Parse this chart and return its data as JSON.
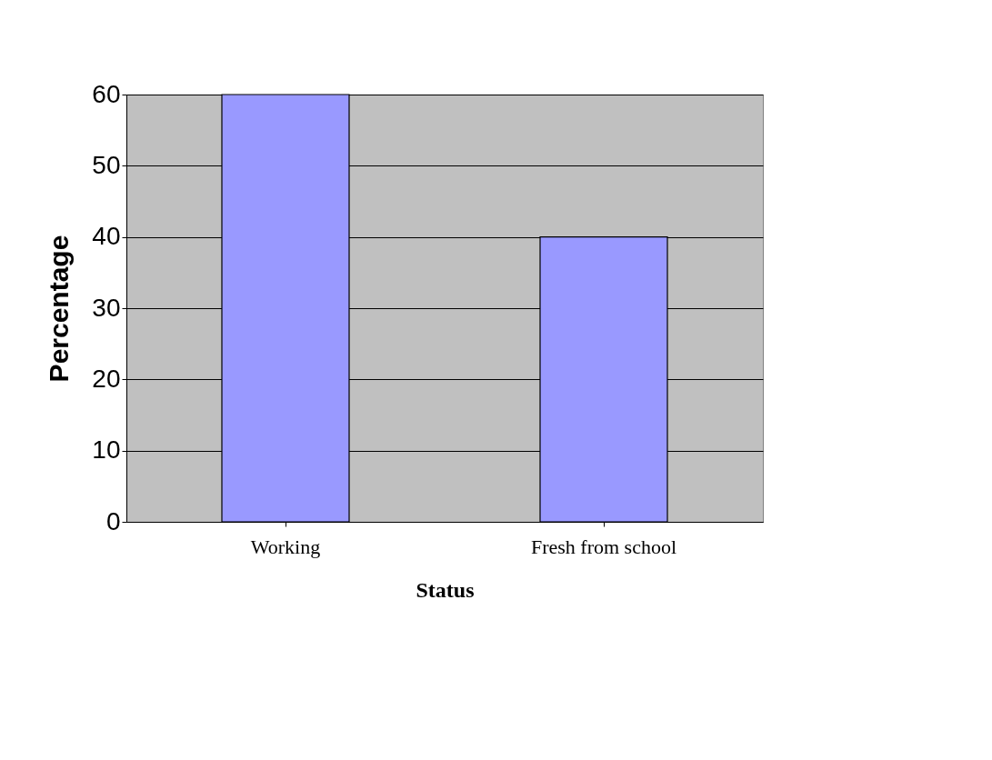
{
  "chart_data": {
    "type": "bar",
    "xlabel": "Status",
    "ylabel": "Percentage",
    "categories": [
      "Working",
      "Fresh from school"
    ],
    "values": [
      60,
      40
    ],
    "color": "#9999ff",
    "ylim": [
      0,
      60
    ],
    "yticks": [
      0,
      10,
      20,
      30,
      40,
      50,
      60
    ],
    "grid": "y"
  }
}
